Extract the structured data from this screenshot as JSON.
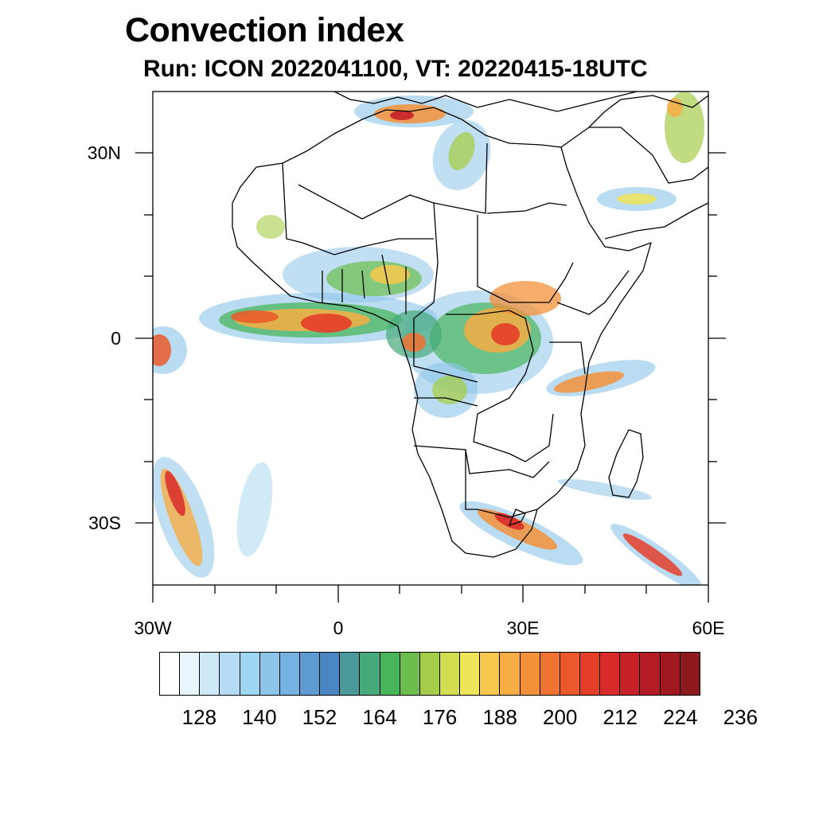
{
  "header": {
    "title": "Convection index",
    "subtitle": "Run: ICON 2022041100,  VT: 20220415-18UTC"
  },
  "map": {
    "lon_range": [
      -30,
      60
    ],
    "lat_range": [
      -40,
      40
    ],
    "x_tick_labels": [
      "30W",
      "0",
      "30E",
      "60E"
    ],
    "y_tick_labels": [
      "30N",
      "0",
      "30S"
    ],
    "ocean_color": "#ffffff",
    "border_color": "#000000"
  },
  "colorbar": {
    "colors": [
      "#ffffff",
      "#e8f5fc",
      "#cde8f7",
      "#b3dcf4",
      "#9fd6f3",
      "#8cc5ea",
      "#77b3e2",
      "#5e9bd3",
      "#4a87c2",
      "#4a9a9c",
      "#46a97a",
      "#48b55a",
      "#6bbd4c",
      "#a6cd4a",
      "#d4dc50",
      "#efe55a",
      "#f7c84e",
      "#f6ad44",
      "#f3903a",
      "#ef7232",
      "#ea582c",
      "#e43e29",
      "#d92a2a",
      "#c72128",
      "#b51b24",
      "#a11920",
      "#8c1a1d"
    ],
    "labels": [
      "128",
      "140",
      "152",
      "164",
      "176",
      "188",
      "200",
      "212",
      "224",
      "236"
    ]
  }
}
